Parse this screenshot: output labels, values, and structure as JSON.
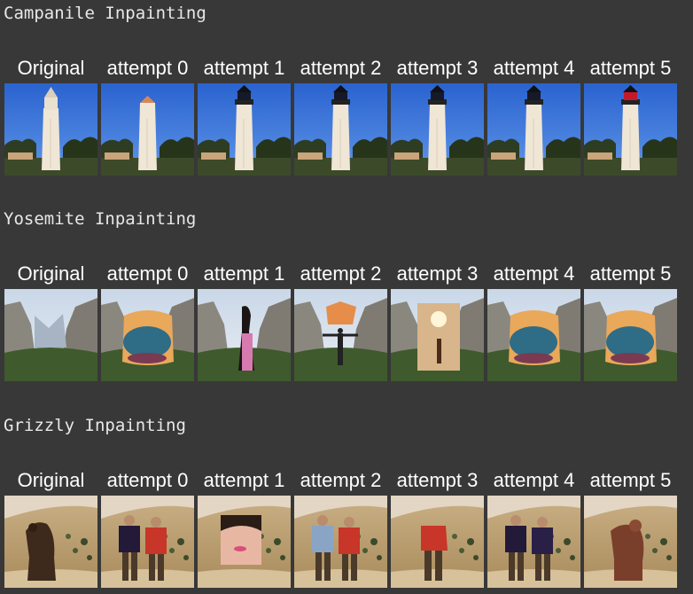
{
  "sections": [
    {
      "title": "Campanile Inpainting",
      "scene": "campanile",
      "labels": [
        "Original",
        "attempt 0",
        "attempt 1",
        "attempt 2",
        "attempt 3",
        "attempt 4",
        "attempt 5"
      ],
      "variants": [
        "clock",
        "plain",
        "light-black",
        "light-black",
        "light-black",
        "light-black",
        "light-red"
      ]
    },
    {
      "title": "Yosemite Inpainting",
      "scene": "yosemite",
      "labels": [
        "Original",
        "attempt 0",
        "attempt 1",
        "attempt 2",
        "attempt 3",
        "attempt 4",
        "attempt 5"
      ],
      "variants": [
        "valley",
        "lake-sunset",
        "woman",
        "man-arms",
        "glow-figure",
        "sunset-lake",
        "lake"
      ]
    },
    {
      "title": "Grizzly Inpainting",
      "scene": "grizzly",
      "labels": [
        "Original",
        "attempt 0",
        "attempt 1",
        "attempt 2",
        "attempt 3",
        "attempt 4",
        "attempt 5"
      ],
      "variants": [
        "bear",
        "two-people",
        "face",
        "two-people-red",
        "person-red",
        "two-people-dark",
        "bear-brown"
      ]
    }
  ],
  "colors": {
    "background": "#383838",
    "sky": "#2f6fd6",
    "tower": "#efe6d6",
    "mountain": "#8d8a82",
    "hill": "#b49a68"
  }
}
